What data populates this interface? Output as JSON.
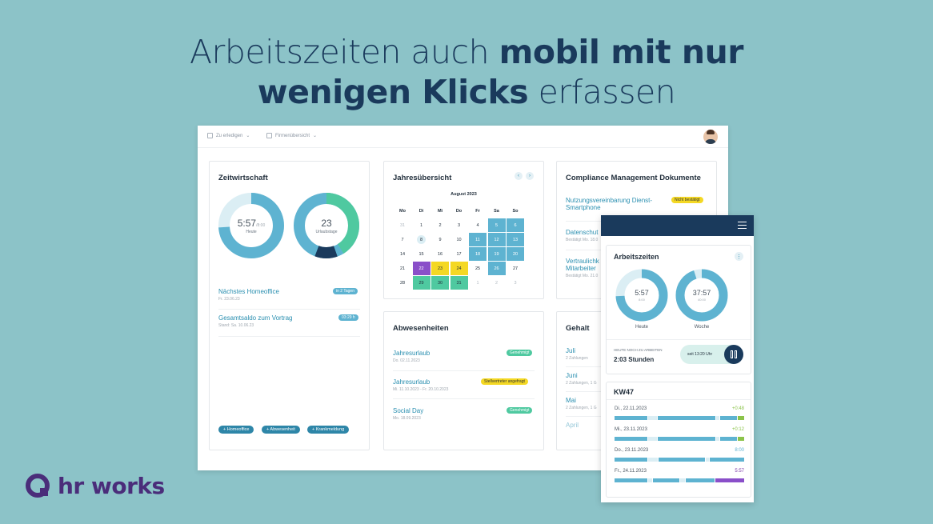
{
  "headline": {
    "line1_light": "Arbeitszeiten auch ",
    "line1_bold": "mobil mit nur",
    "line2_bold": "wenigen Klicks",
    "line2_light": " erfassen"
  },
  "topbar": {
    "item1": "Zu erledigen",
    "item2": "Firmenübersicht"
  },
  "zeitwirtschaft": {
    "title": "Zeitwirtschaft",
    "donut1": {
      "value": "5:57",
      "target": "/8:00",
      "label": "Heute",
      "fraction": 0.74
    },
    "donut2": {
      "value": "23",
      "label": "Urlaubstage",
      "fraction": 0.4
    },
    "items": [
      {
        "label": "Nächstes Homeoffice",
        "sub": "Fr. 23.06.23",
        "badge": "in 2 Tagen"
      },
      {
        "label": "Gesamtsaldo zum Vortrag",
        "sub": "Stand: Sa. 10.06.23",
        "badge": "03:29 h"
      }
    ],
    "pills": [
      "+ Homeoffice",
      "+ Abwesenheit",
      "+ Krankmeldung"
    ]
  },
  "jahresuebersicht": {
    "title": "Jahresübersicht",
    "month": "August 2023",
    "weekdays": [
      "Mo",
      "Di",
      "Mi",
      "Do",
      "Fr",
      "Sa",
      "So"
    ],
    "weeks": [
      [
        "31",
        "1",
        "2",
        "3",
        "4",
        "5",
        "6"
      ],
      [
        "7",
        "8",
        "9",
        "10",
        "11",
        "12",
        "13"
      ],
      [
        "14",
        "15",
        "16",
        "17",
        "18",
        "19",
        "20"
      ],
      [
        "21",
        "22",
        "23",
        "24",
        "25",
        "26",
        "27"
      ],
      [
        "28",
        "29",
        "30",
        "31",
        "1",
        "2",
        "3"
      ]
    ]
  },
  "compliance": {
    "title": "Compliance Management Dokumente",
    "items": [
      {
        "label": "Nutzungsvereinbarung Dienst-Smartphone",
        "badge": "Nicht bestätigt"
      },
      {
        "label": "Datenschut",
        "sub": "Bestätigt Mo. 18.0"
      },
      {
        "label": "Vertraulichk Mitarbeiter",
        "sub": "Bestätigt Mo. 21.0"
      }
    ]
  },
  "abwesenheiten": {
    "title": "Abwesenheiten",
    "items": [
      {
        "label": "Jahresurlaub",
        "sub": "Do. 02.11.2023",
        "badge": "Genehmigt"
      },
      {
        "label": "Jahresurlaub",
        "sub": "Mi. 11.10.2023 - Fr. 20.10.2023",
        "badge": "Stellvertreter angefragt"
      },
      {
        "label": "Social Day",
        "sub": "Mo. 18.09.2023",
        "badge": "Genehmigt"
      }
    ]
  },
  "gehalt": {
    "title": "Gehalt",
    "items": [
      {
        "label": "Juli",
        "sub": "2 Zahlungen"
      },
      {
        "label": "Juni",
        "sub": "2 Zahlungen, 1 G"
      },
      {
        "label": "Mai",
        "sub": "2 Zahlungen, 1 G"
      },
      {
        "label": "April",
        "sub": ""
      }
    ]
  },
  "mobile": {
    "arbeitszeiten": {
      "title": "Arbeitszeiten",
      "donut1": {
        "value": "5:57",
        "target": "8:00",
        "label": "Heute"
      },
      "donut2": {
        "value": "37:57",
        "target": "40:00",
        "label": "Woche"
      },
      "remaining_label": "HEUTE NOCH ZU ARBEITEN",
      "remaining_value": "2:03 Stunden",
      "since": "seit 13:20 Uhr"
    },
    "kw": {
      "title": "KW47",
      "rows": [
        {
          "date": "Di., 22.11.2023",
          "value": "+0:48",
          "color": "#8bc34a"
        },
        {
          "date": "Mi., 23.11.2023",
          "value": "+0:12",
          "color": "#8bc34a"
        },
        {
          "date": "Do., 23.11.2023",
          "value": "8:00",
          "color": "#5eb3d1"
        },
        {
          "date": "Fr., 24.11.2023",
          "value": "5:57",
          "color": "#7c3aa8"
        }
      ]
    }
  },
  "logo": {
    "text": "hr works"
  },
  "colors": {
    "background": "#8cc3c8",
    "navy": "#1a3a5c",
    "teal": "#5eb3d1",
    "green": "#4fc9a0",
    "yellow": "#f4d824",
    "purple": "#8a4fc9",
    "brand": "#4a2d7a"
  }
}
